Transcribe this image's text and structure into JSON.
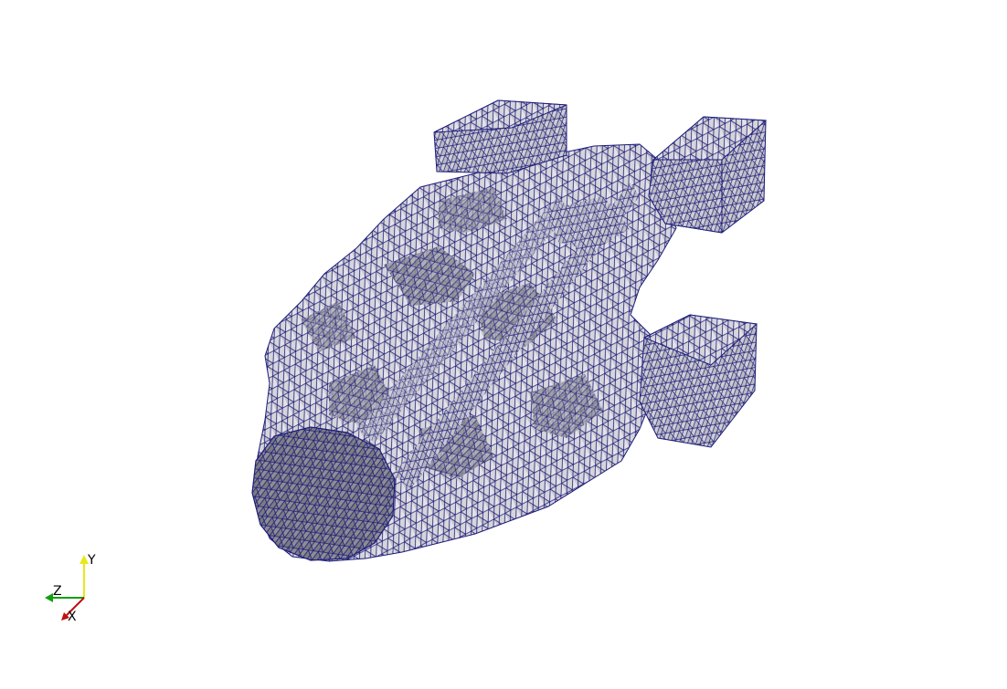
{
  "viewport": {
    "background": "#ffffff",
    "mesh": {
      "description_icon": "tetrahedral-wireframe-surface",
      "face_light": "#e6e4ea",
      "face_mid": "#b9b8bd",
      "face_dark": "#6f6f74",
      "edge_color": "#1c1c7a"
    }
  },
  "orientation_axes": {
    "x": {
      "label": "X",
      "color": "#c01010"
    },
    "y": {
      "label": "Y",
      "color": "#e8e81a"
    },
    "z": {
      "label": "Z",
      "color": "#10a010"
    }
  }
}
